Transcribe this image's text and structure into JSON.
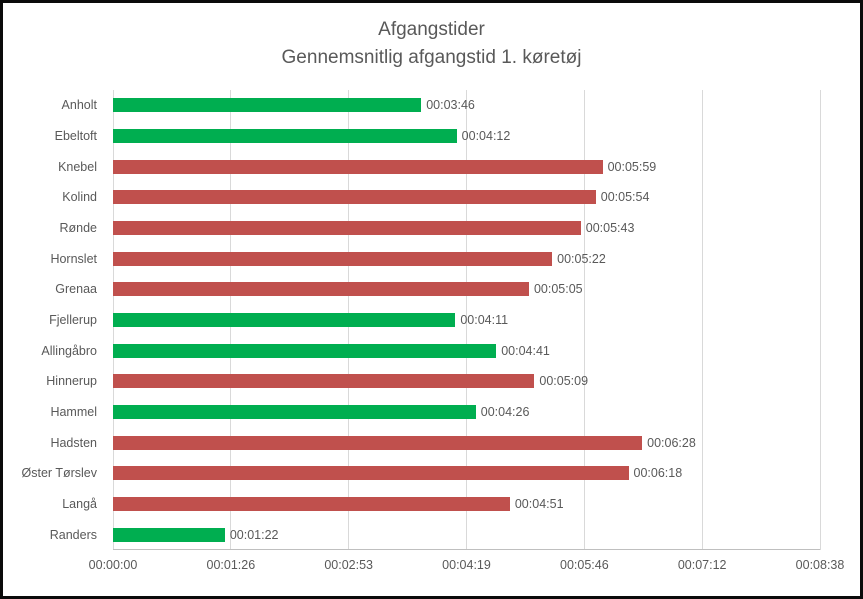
{
  "frame": {
    "border_color": "#0a0a0a",
    "background": "#ffffff"
  },
  "chart_data": {
    "type": "bar",
    "orientation": "horizontal",
    "title": "Afgangstider",
    "subtitle": "Gennemsnitlig afgangstid 1. køretøj",
    "categories": [
      "Anholt",
      "Ebeltoft",
      "Knebel",
      "Kolind",
      "Rønde",
      "Hornslet",
      "Grenaa",
      "Fjellerup",
      "Allingåbro",
      "Hinnerup",
      "Hammel",
      "Hadsten",
      "Øster Tørslev",
      "Langå",
      "Randers"
    ],
    "values": [
      "00:03:46",
      "00:04:12",
      "00:05:59",
      "00:05:54",
      "00:05:43",
      "00:05:22",
      "00:05:05",
      "00:04:11",
      "00:04:41",
      "00:05:09",
      "00:04:26",
      "00:06:28",
      "00:06:18",
      "00:04:51",
      "00:01:22"
    ],
    "values_seconds": [
      226,
      252,
      359,
      354,
      343,
      322,
      305,
      251,
      281,
      309,
      266,
      388,
      378,
      291,
      82
    ],
    "bar_colors": [
      "#00AE50",
      "#00AE50",
      "#C0504D",
      "#C0504D",
      "#C0504D",
      "#C0504D",
      "#C0504D",
      "#00AE50",
      "#00AE50",
      "#C0504D",
      "#00AE50",
      "#C0504D",
      "#C0504D",
      "#C0504D",
      "#00AE50"
    ],
    "xlabel": "",
    "ylabel": "",
    "xlim_seconds": [
      0,
      518.4
    ],
    "x_ticks": {
      "labels": [
        "00:00:00",
        "00:01:26",
        "00:02:53",
        "00:04:19",
        "00:05:46",
        "00:07:12",
        "00:08:38"
      ],
      "seconds": [
        0,
        86.4,
        172.8,
        259.2,
        345.6,
        432,
        518.4
      ]
    },
    "grid": true,
    "legend": false,
    "styles": {
      "grid_color": "#d9d9d9",
      "axis_color": "#bfbfbf",
      "label_color": "#595959",
      "green": "#00AE50",
      "red": "#C0504D"
    }
  }
}
